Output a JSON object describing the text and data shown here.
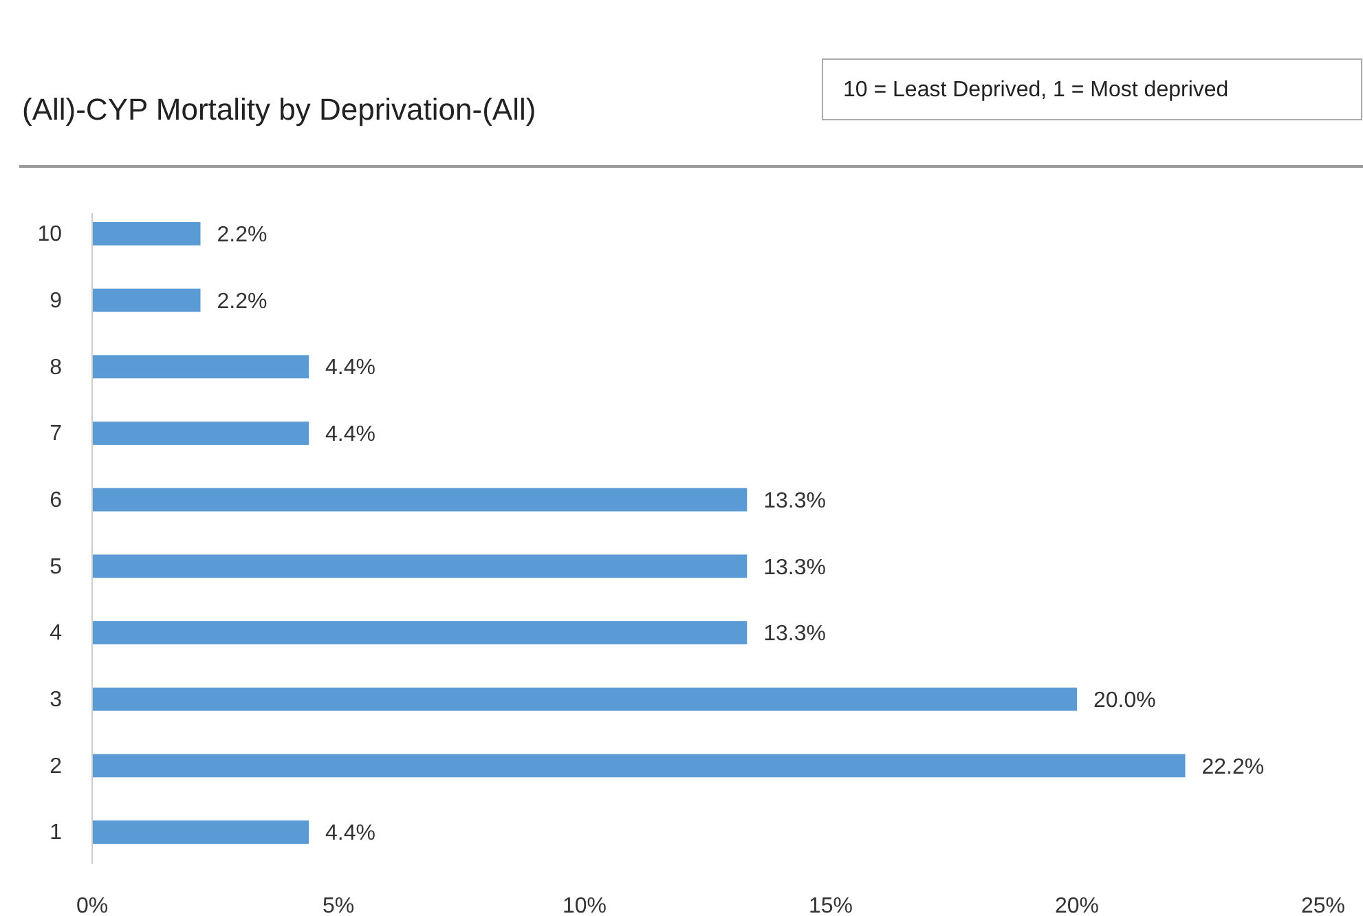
{
  "chart_data": {
    "type": "bar",
    "orientation": "horizontal",
    "title": "(All)-CYP Mortality by Deprivation-(All)",
    "annotations": [
      "10 = Least Deprived, 1 = Most deprived"
    ],
    "categories": [
      "10",
      "9",
      "8",
      "7",
      "6",
      "5",
      "4",
      "3",
      "2",
      "1"
    ],
    "values": [
      2.2,
      2.2,
      4.4,
      4.4,
      13.3,
      13.3,
      13.3,
      20.0,
      22.2,
      4.4
    ],
    "value_labels": [
      "2.2%",
      "2.2%",
      "4.4%",
      "4.4%",
      "13.3%",
      "13.3%",
      "13.3%",
      "20.0%",
      "22.2%",
      "4.4%"
    ],
    "color": "#5b9bd5",
    "xlim": [
      0,
      25
    ],
    "xticks": [
      {
        "value": 0,
        "label": "0%"
      },
      {
        "value": 5,
        "label": "5%"
      },
      {
        "value": 10,
        "label": "10%"
      },
      {
        "value": 15,
        "label": "15%"
      },
      {
        "value": 20,
        "label": "20%"
      },
      {
        "value": 25,
        "label": "25%"
      }
    ],
    "grid": false
  }
}
